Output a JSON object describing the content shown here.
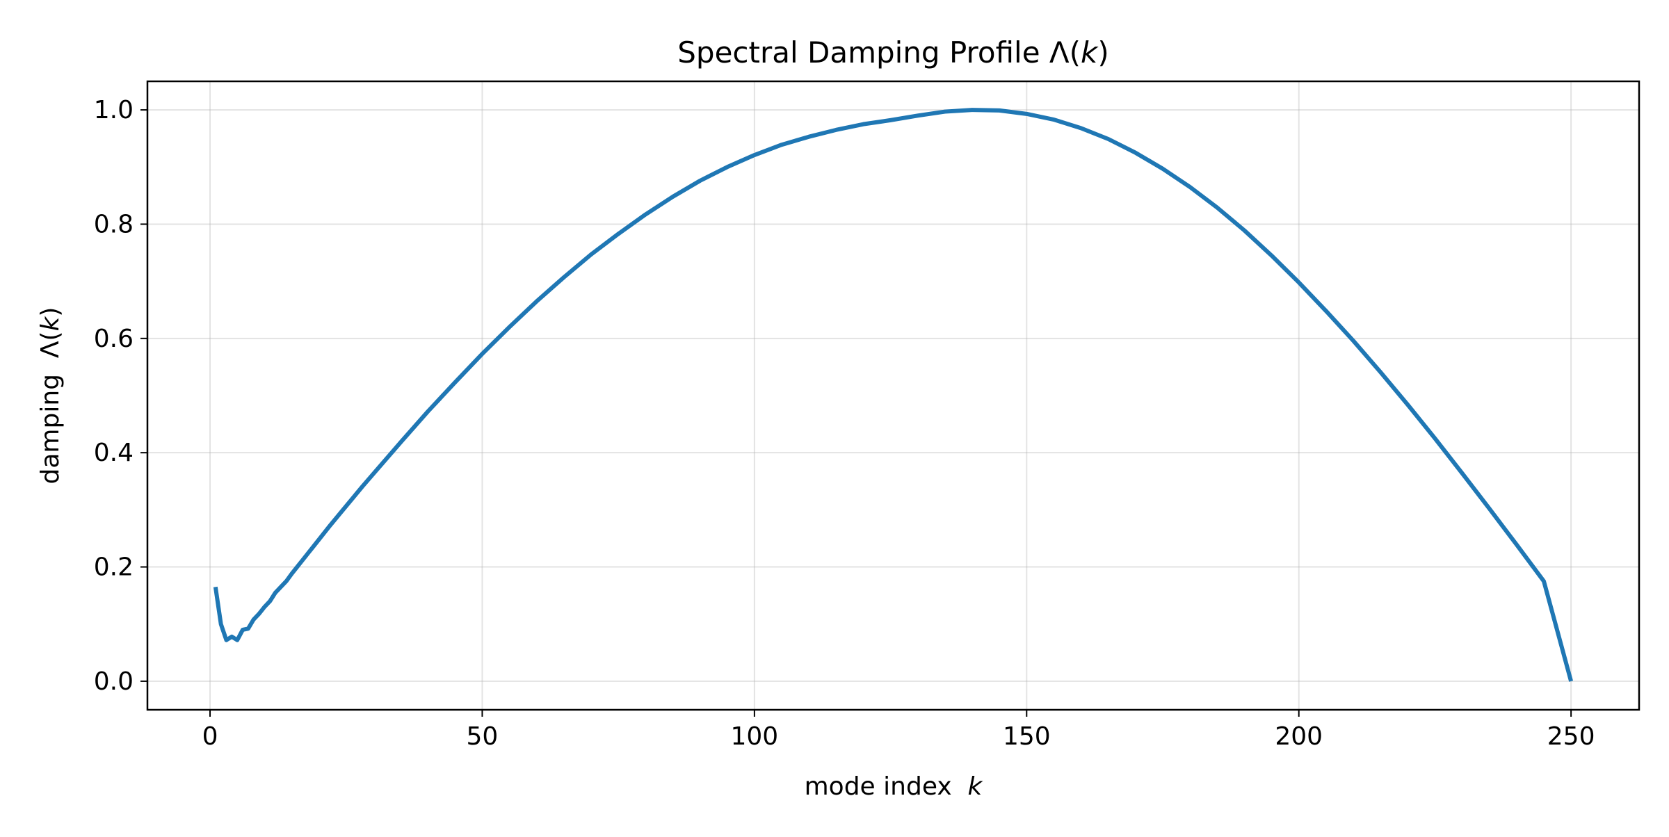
{
  "chart_data": {
    "type": "line",
    "title": "Spectral Damping Profile Λ(k)",
    "title_parts": [
      "Spectral Damping Profile Λ(",
      "k",
      ")"
    ],
    "xlabel": "mode index k",
    "xlabel_parts": [
      "mode index  ",
      "k"
    ],
    "ylabel": "damping Λ(k)",
    "ylabel_parts": [
      "damping  Λ(",
      "k",
      ")"
    ],
    "xlim": [
      -11.5,
      262.5
    ],
    "ylim": [
      -0.05,
      1.05
    ],
    "xticks": [
      0,
      50,
      100,
      150,
      200,
      250
    ],
    "xtick_labels": [
      "0",
      "50",
      "100",
      "150",
      "200",
      "250"
    ],
    "yticks": [
      0.0,
      0.2,
      0.4,
      0.6,
      0.8,
      1.0
    ],
    "ytick_labels": [
      "0.0",
      "0.2",
      "0.4",
      "0.6",
      "0.8",
      "1.0"
    ],
    "grid": true,
    "line_color": "#1f77b4",
    "series": [
      {
        "x": [
          1,
          2,
          3,
          4,
          5,
          6,
          7,
          8,
          9,
          10,
          11,
          12,
          13,
          14,
          15,
          16,
          17,
          18,
          19,
          20,
          22,
          24,
          26,
          28,
          30,
          35,
          40,
          45,
          50,
          55,
          60,
          65,
          70,
          75,
          80,
          85,
          90,
          95,
          100,
          105,
          110,
          115,
          120,
          125,
          130,
          135,
          140,
          145,
          150,
          155,
          160,
          165,
          170,
          175,
          180,
          185,
          190,
          195,
          200,
          205,
          210,
          215,
          220,
          225,
          230,
          235,
          240,
          245,
          250
        ],
        "y": [
          0.165,
          0.1,
          0.072,
          0.078,
          0.072,
          0.09,
          0.092,
          0.108,
          0.118,
          0.13,
          0.14,
          0.155,
          0.165,
          0.175,
          0.188,
          0.2,
          0.212,
          0.224,
          0.236,
          0.248,
          0.272,
          0.295,
          0.318,
          0.341,
          0.363,
          0.418,
          0.472,
          0.523,
          0.573,
          0.62,
          0.665,
          0.707,
          0.747,
          0.783,
          0.817,
          0.848,
          0.876,
          0.9,
          0.921,
          0.939,
          0.953,
          0.965,
          0.975,
          0.982,
          0.99,
          0.997,
          1.0,
          0.999,
          0.993,
          0.983,
          0.968,
          0.949,
          0.925,
          0.897,
          0.865,
          0.829,
          0.789,
          0.745,
          0.698,
          0.648,
          0.596,
          0.541,
          0.484,
          0.425,
          0.364,
          0.302,
          0.239,
          0.175,
          0.0
        ]
      }
    ]
  }
}
